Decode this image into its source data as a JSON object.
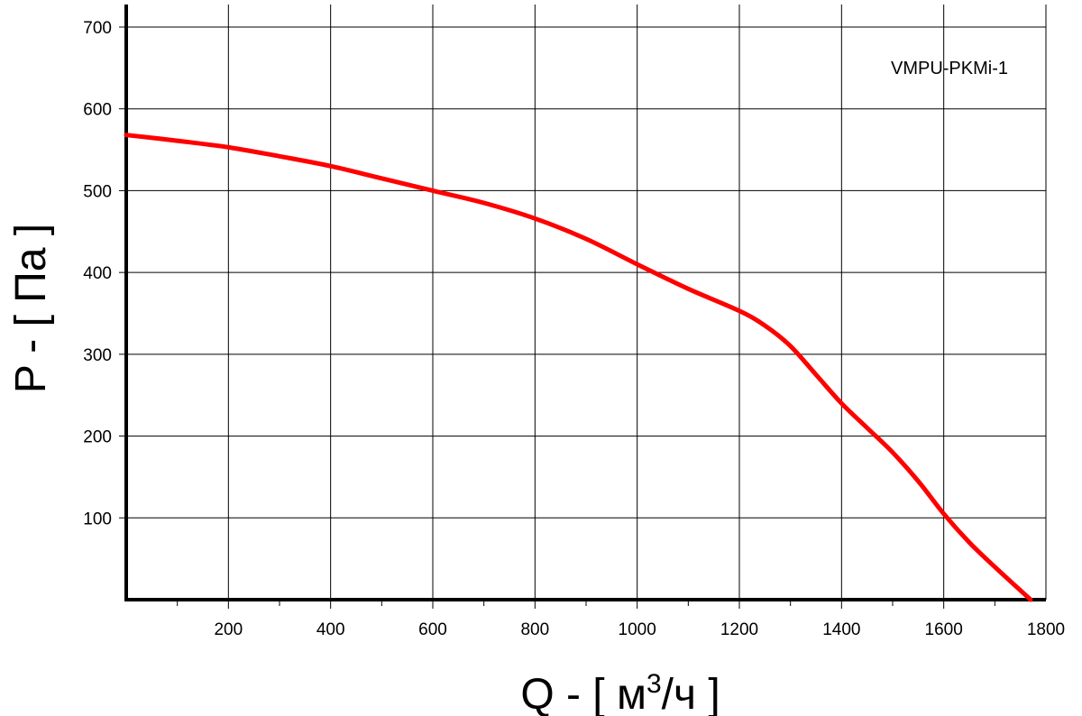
{
  "chart_data": {
    "type": "line",
    "model_label": "VMPU-PKMi-1",
    "xlabel": {
      "base": "Q - [ м",
      "sup": "3",
      "tail": "/ч ]"
    },
    "ylabel": "P - [ Па ]",
    "xlim": [
      0,
      1800
    ],
    "ylim": [
      0,
      700
    ],
    "x_ticks": [
      200,
      400,
      600,
      800,
      1000,
      1200,
      1400,
      1600,
      1800
    ],
    "y_ticks": [
      100,
      200,
      300,
      400,
      500,
      600,
      700
    ],
    "x_minor_step": 100,
    "grid": true,
    "colors": {
      "curve": "#ff0000",
      "grid": "#000000",
      "axis": "#000000"
    },
    "series": [
      {
        "x": [
          0,
          100,
          200,
          300,
          400,
          500,
          600,
          700,
          800,
          900,
          1000,
          1100,
          1200,
          1250,
          1300,
          1350,
          1400,
          1450,
          1500,
          1550,
          1600,
          1650,
          1700,
          1770
        ],
        "y": [
          568,
          561,
          553,
          542,
          530,
          515,
          500,
          485,
          466,
          441,
          410,
          380,
          353,
          335,
          310,
          275,
          240,
          210,
          180,
          145,
          105,
          70,
          40,
          0
        ]
      }
    ]
  }
}
